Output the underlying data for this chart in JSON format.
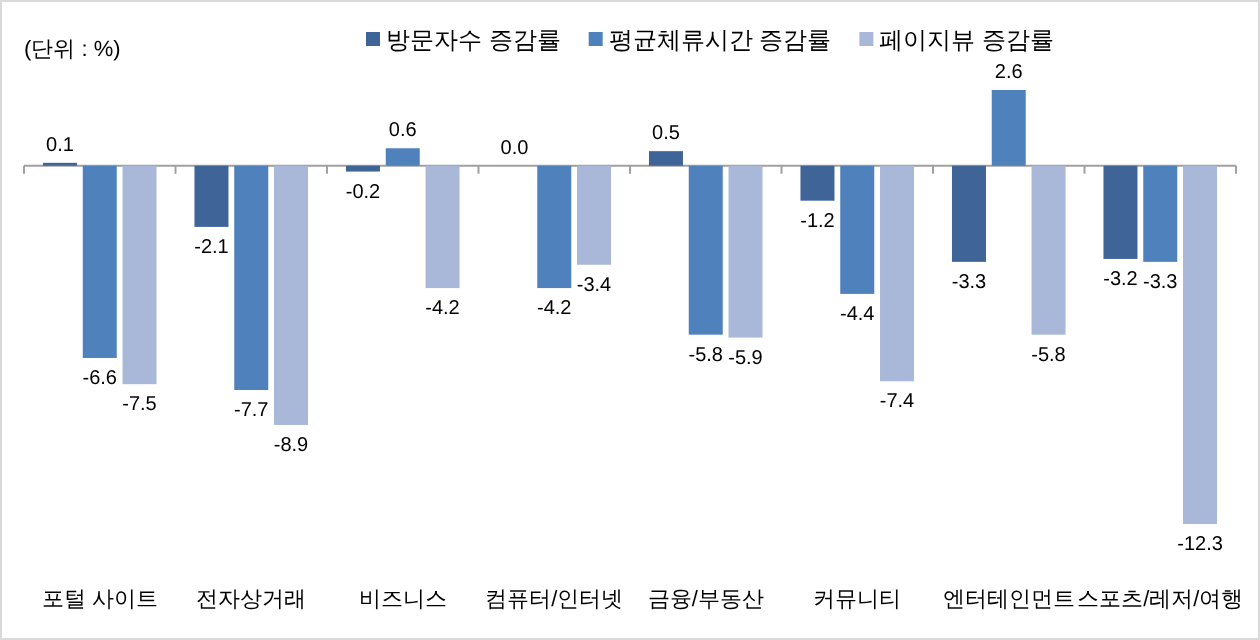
{
  "chart_data": {
    "type": "bar",
    "categories": [
      "포털 사이트",
      "전자상거래",
      "비즈니스",
      "컴퓨터/인터넷",
      "금융/부동산",
      "커뮤니티",
      "엔터테인먼트",
      "스포츠/레저/여행"
    ],
    "series": [
      {
        "name": "방문자수 증감률",
        "color": "#3f6498",
        "values": [
          0.1,
          -2.1,
          -0.2,
          0.0,
          0.5,
          -1.2,
          -3.3,
          -3.2
        ],
        "value_labels": [
          "0.1",
          "-2.1",
          "-0.2",
          "0.0",
          "0.5",
          "-1.2",
          "-3.3",
          "-3.2"
        ]
      },
      {
        "name": "평균체류시간 증감률",
        "color": "#4f81bd",
        "values": [
          -6.6,
          -7.7,
          0.6,
          -4.2,
          -5.8,
          -4.4,
          2.6,
          -3.3
        ],
        "value_labels": [
          "-6.6",
          "-7.7",
          "0.6",
          "-4.2",
          "-5.8",
          "-4.4",
          "2.6",
          "-3.3"
        ]
      },
      {
        "name": "페이지뷰 증감률",
        "color": "#a9b8d8",
        "values": [
          -7.5,
          -8.9,
          -4.2,
          -3.4,
          -5.9,
          -7.4,
          -5.8,
          -12.3
        ],
        "value_labels": [
          "-7.5",
          "-8.9",
          "-4.2",
          "-3.4",
          "-5.9",
          "-7.4",
          "-5.8",
          "-12.3"
        ]
      }
    ],
    "legend": "top",
    "annotations": [
      "(단위 : %)"
    ]
  }
}
